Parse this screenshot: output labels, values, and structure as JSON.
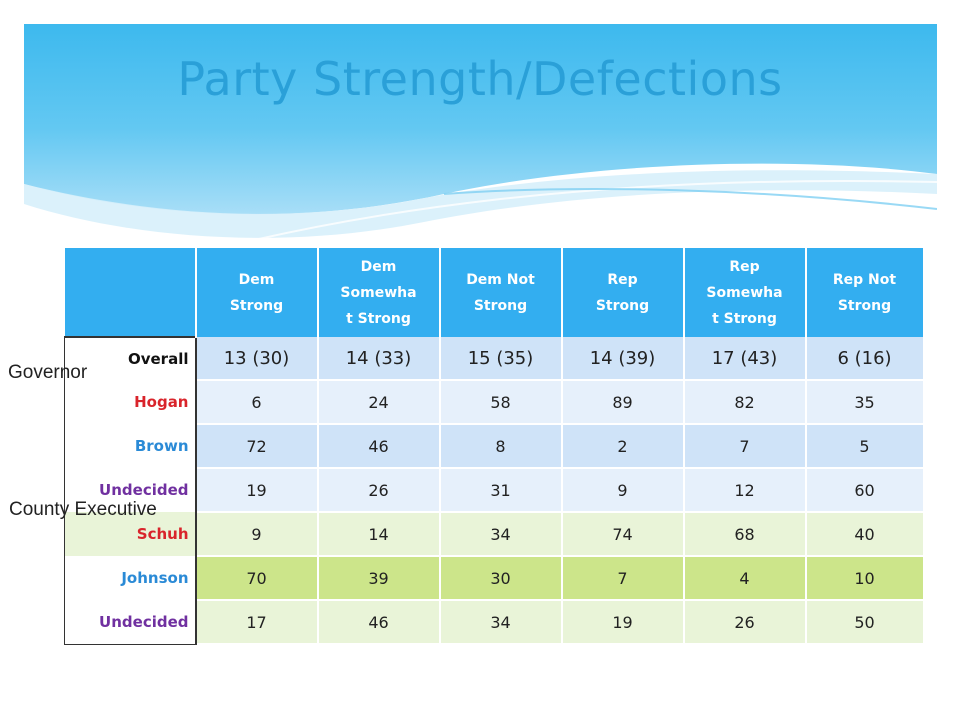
{
  "slide": {
    "title": "Party Strength/Defections",
    "side_labels": {
      "governor": "Governor",
      "county_executive": "County Executive"
    },
    "colors": {
      "title": "#2aa0d8",
      "header_band": "#37b5ec",
      "table_header": "#33aef0",
      "hogan": "#d9242b",
      "brown": "#2a8ad6",
      "undecided": "#7030a0",
      "schuh": "#d9242b",
      "johnson": "#2a8ad6"
    }
  },
  "table": {
    "columns": [
      "Dem Strong",
      "Dem Somewhat Strong",
      "Dem Not Strong",
      "Rep Strong",
      "Rep Somewhat Strong",
      "Rep Not Strong"
    ],
    "column_display": [
      [
        "Dem",
        "Strong"
      ],
      [
        "Dem",
        "Somewha",
        "t Strong"
      ],
      [
        "Dem Not",
        "Strong"
      ],
      [
        "Rep",
        "Strong"
      ],
      [
        "Rep",
        "Somewha",
        "t Strong"
      ],
      [
        "Rep Not",
        "Strong"
      ]
    ],
    "rows": [
      {
        "label": "Overall",
        "values": [
          "13  (30)",
          "14  (33)",
          "15  (35)",
          "14  (39)",
          "17 (43)",
          "6 (16)"
        ]
      },
      {
        "label": "Hogan",
        "values": [
          "6",
          "24",
          "58",
          "89",
          "82",
          "35"
        ]
      },
      {
        "label": "Brown",
        "values": [
          "72",
          "46",
          "8",
          "2",
          "7",
          "5"
        ]
      },
      {
        "label": "Undecided",
        "values": [
          "19",
          "26",
          "31",
          "9",
          "12",
          "60"
        ]
      },
      {
        "label": "Schuh",
        "values": [
          "9",
          "14",
          "34",
          "74",
          "68",
          "40"
        ]
      },
      {
        "label": "Johnson",
        "values": [
          "70",
          "39",
          "30",
          "7",
          "4",
          "10"
        ]
      },
      {
        "label": "Undecided",
        "values": [
          "17",
          "46",
          "34",
          "19",
          "26",
          "50"
        ]
      }
    ]
  }
}
